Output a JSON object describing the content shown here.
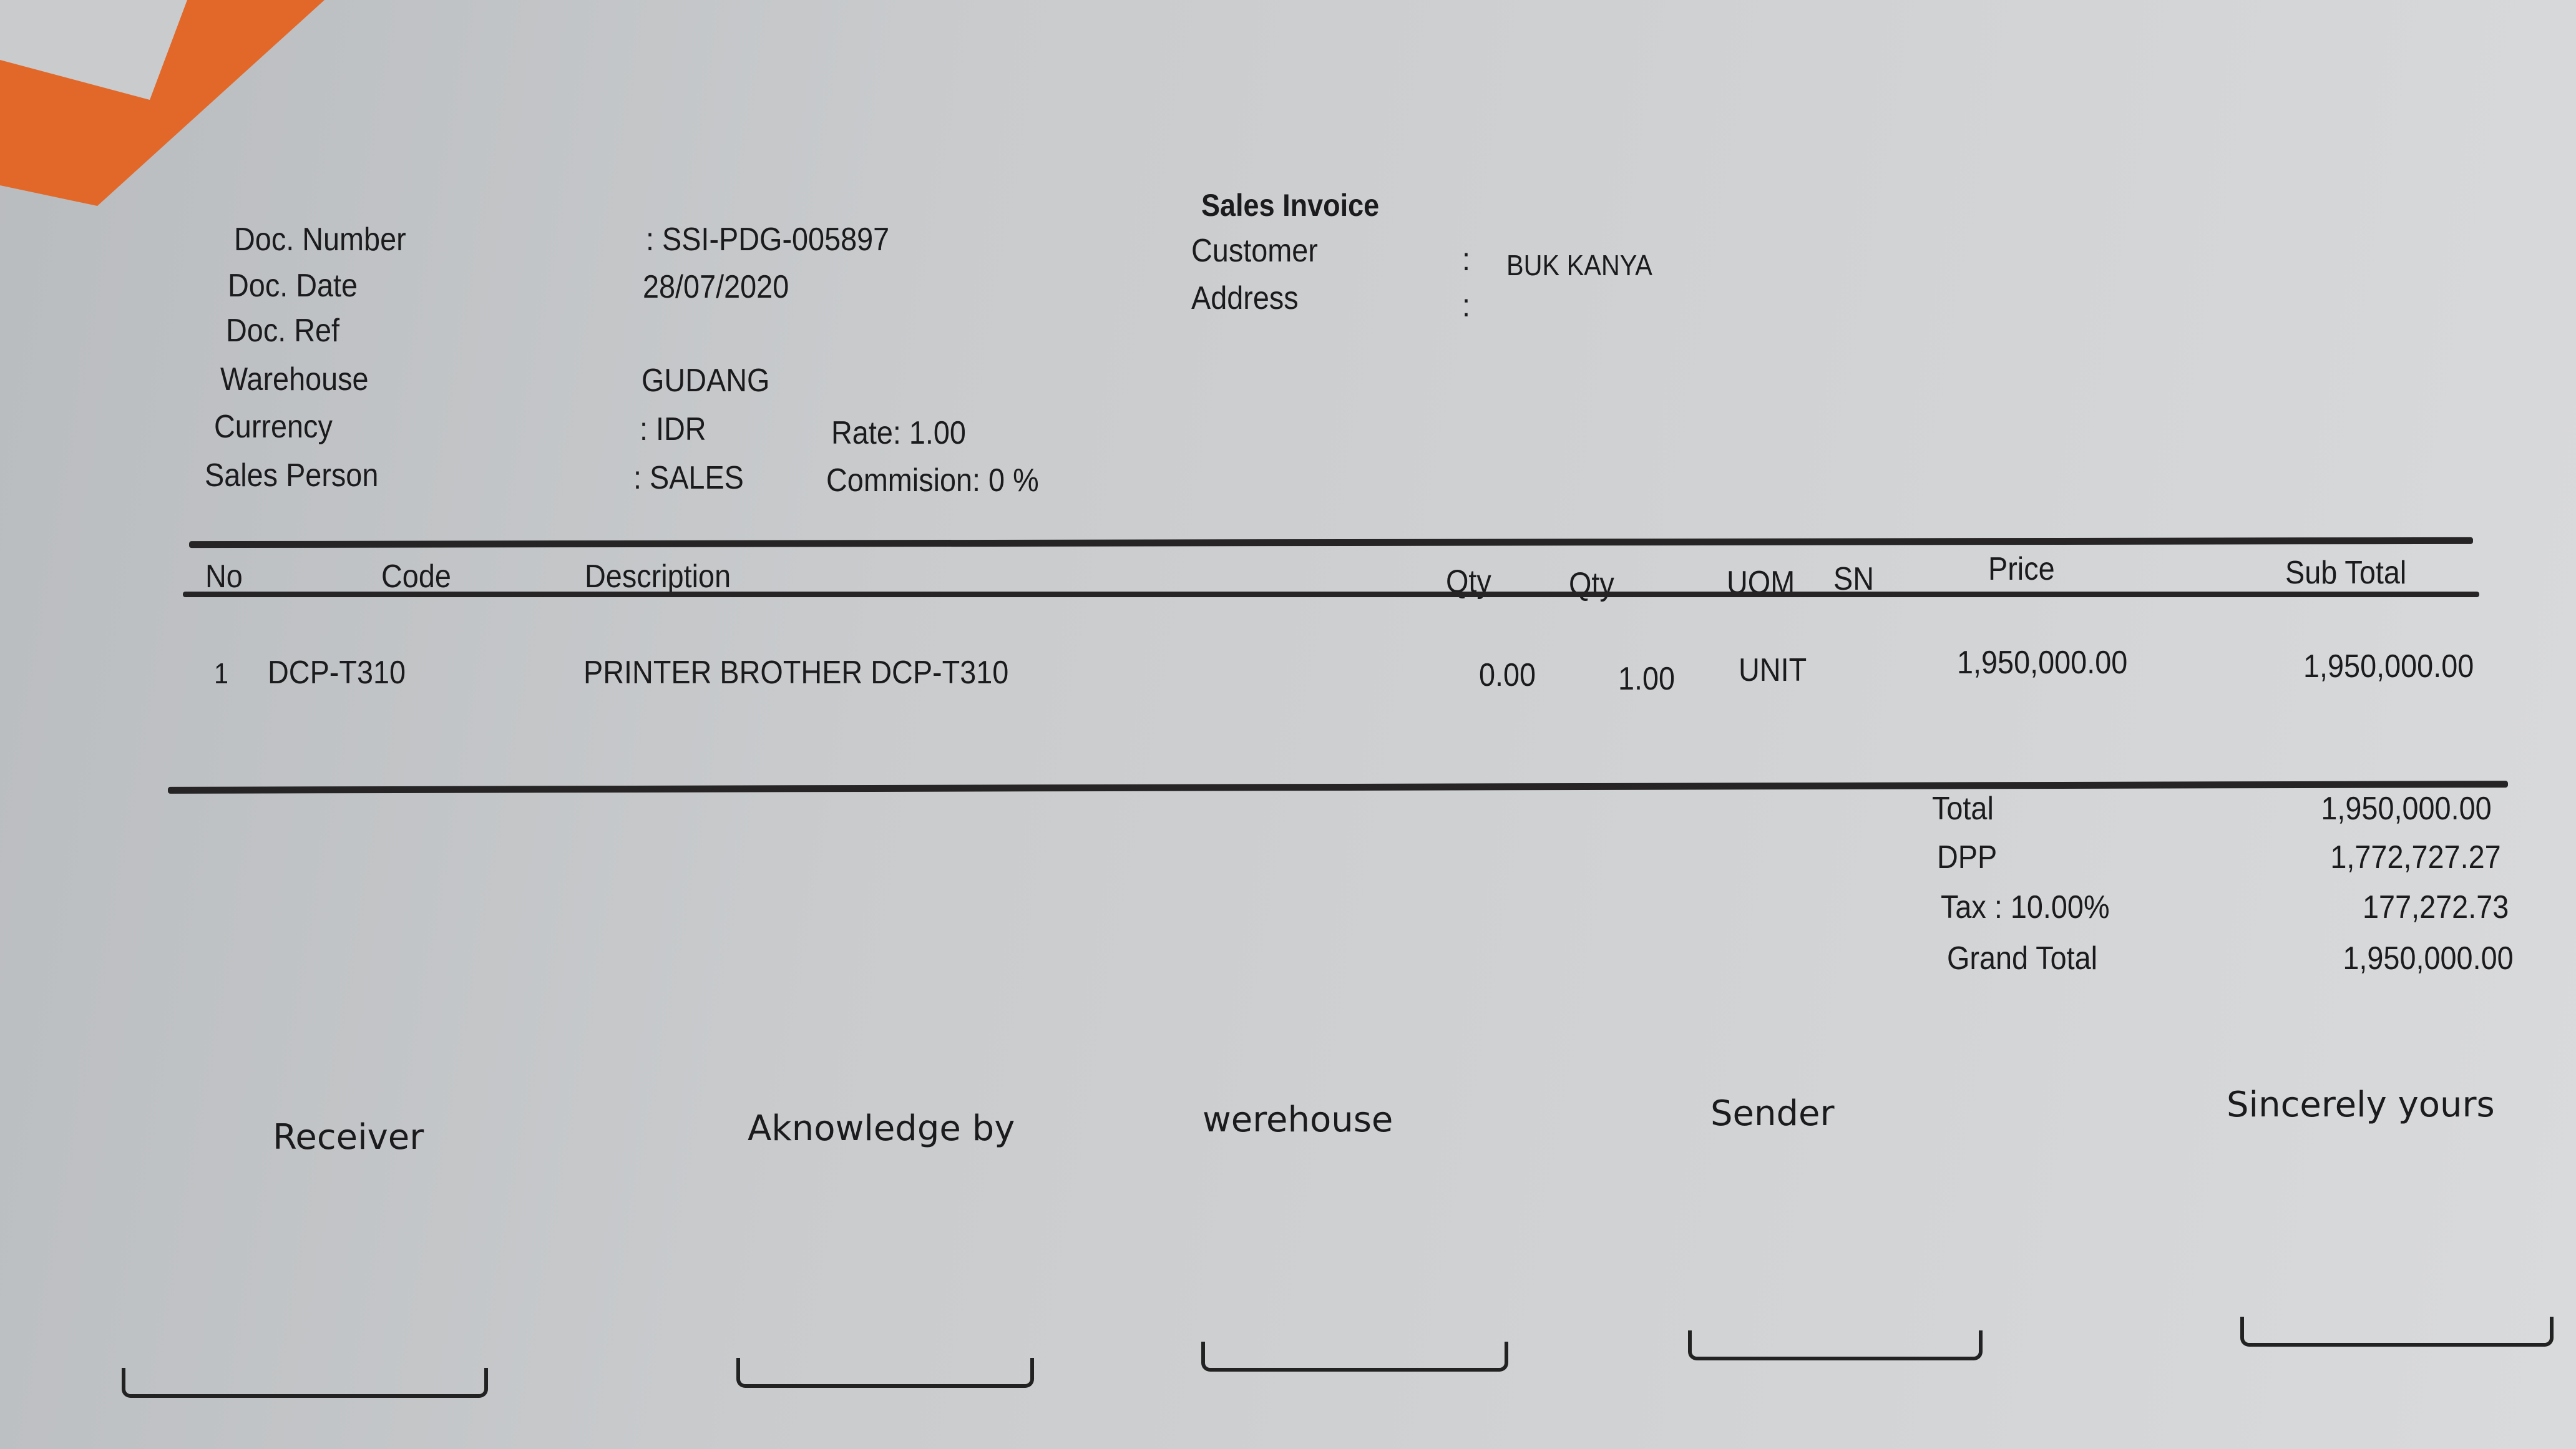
{
  "title": "Sales Invoice",
  "header_left": [
    {
      "label": "Doc. Number",
      "value": ": SSI-PDG-005897"
    },
    {
      "label": "Doc. Date",
      "value": "28/07/2020"
    },
    {
      "label": "Doc. Ref",
      "value": ""
    },
    {
      "label": "Warehouse",
      "value": "GUDANG"
    },
    {
      "label": "Currency",
      "value": ": IDR",
      "extra": "Rate: 1.00"
    },
    {
      "label": "Sales Person",
      "value": ": SALES",
      "extra": "Commision: 0 %"
    }
  ],
  "header_right": [
    {
      "label": "Customer",
      "colon": ":",
      "value": "BUK KANYA"
    },
    {
      "label": "Address",
      "colon": ":",
      "value": ""
    }
  ],
  "table": {
    "columns": [
      "No",
      "Code",
      "Description",
      "Qty",
      "Qty",
      "UOM",
      "SN",
      "Price",
      "Sub Total"
    ],
    "rows": [
      {
        "no": "1",
        "code": "DCP-T310",
        "description": "PRINTER BROTHER DCP-T310",
        "qty1": "0.00",
        "qty2": "1.00",
        "uom": "UNIT",
        "sn": "",
        "price": "1,950,000.00",
        "subtotal": "1,950,000.00"
      }
    ]
  },
  "totals": [
    {
      "label": "Total",
      "value": "1,950,000.00"
    },
    {
      "label": "DPP",
      "value": "1,772,727.27"
    },
    {
      "label": "Tax : 10.00%",
      "value": "177,272.73"
    },
    {
      "label": "Grand Total",
      "value": "1,950,000.00"
    }
  ],
  "signatures": [
    "Receiver",
    "Aknowledge by",
    "werehouse",
    "Sender",
    "Sincerely yours"
  ],
  "colors": {
    "paper": "#c9cbcd",
    "ink": "#1b1b1d",
    "corner": "#e2682a"
  }
}
